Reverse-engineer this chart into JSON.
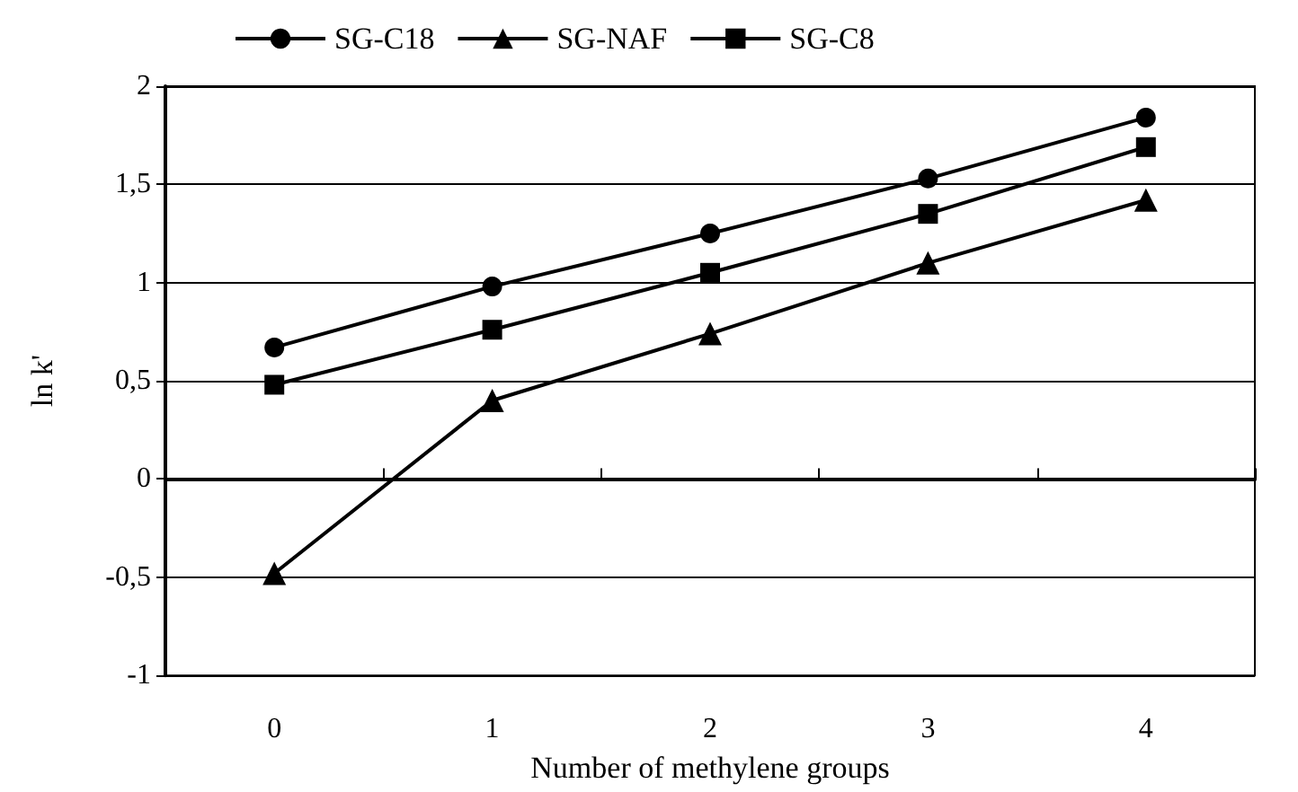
{
  "chart_data": {
    "type": "line",
    "xlabel": "Number of methylene groups",
    "ylabel": "ln k'",
    "categories": [
      "0",
      "1",
      "2",
      "3",
      "4"
    ],
    "series": [
      {
        "name": "SG-C18",
        "color": "#000000",
        "marker": "circle",
        "values": [
          0.67,
          0.98,
          1.25,
          1.53,
          1.84
        ]
      },
      {
        "name": "SG-NAF",
        "color": "#000000",
        "marker": "triangle",
        "values": [
          -0.48,
          0.4,
          0.74,
          1.1,
          1.42
        ]
      },
      {
        "name": "SG-C8",
        "color": "#000000",
        "marker": "square",
        "values": [
          0.48,
          0.76,
          1.05,
          1.35,
          1.69
        ]
      }
    ],
    "ylim": [
      -1,
      2
    ],
    "yticks": [
      -1,
      {
        "value": -0.5,
        "label": "-0,5"
      },
      0,
      {
        "value": 0.5,
        "label": "0,5"
      },
      1,
      {
        "value": 1.5,
        "label": "1,5"
      },
      2
    ],
    "grid": "y",
    "legend": "top left"
  }
}
